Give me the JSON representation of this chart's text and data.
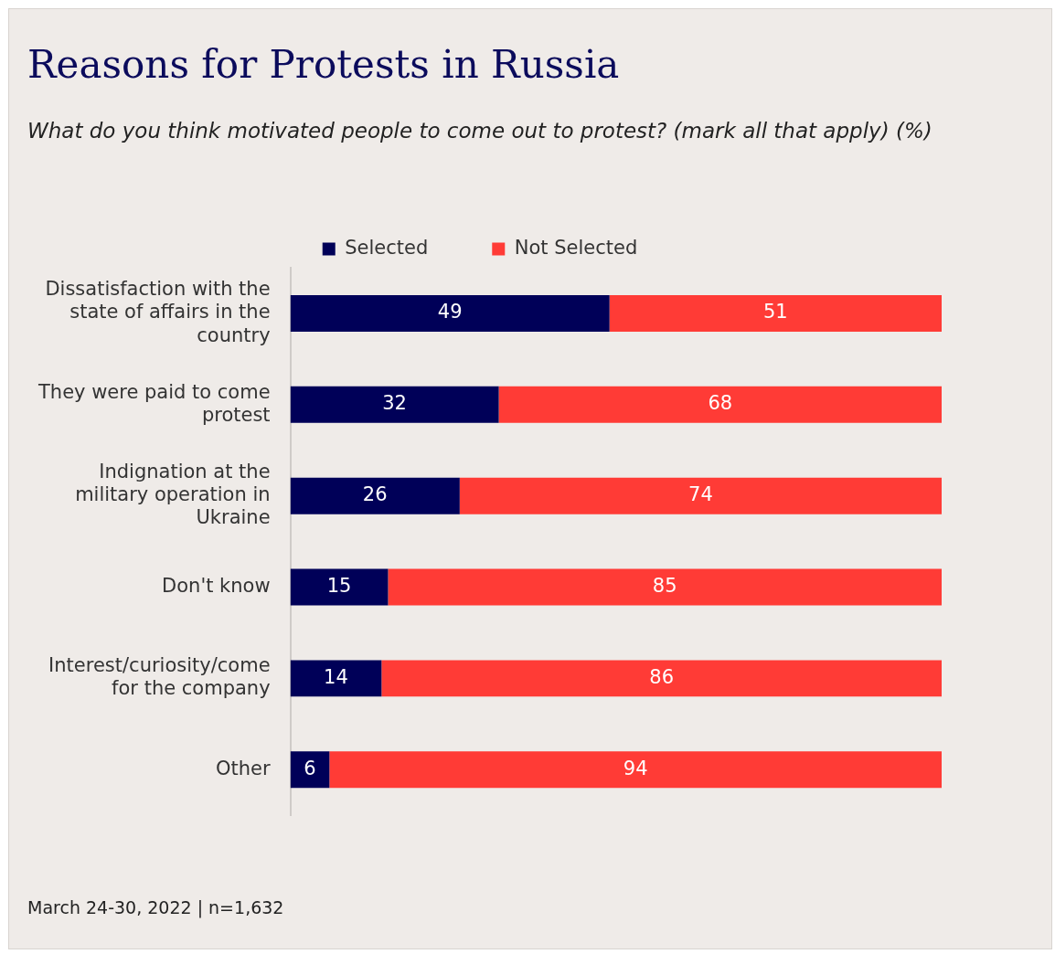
{
  "chart_data": {
    "type": "bar",
    "orientation": "horizontal",
    "stacked": true,
    "title": "Reasons for Protests in Russia",
    "subtitle": "What do you think motivated people to come out to protest? (mark all that apply) (%)",
    "categories": [
      "Dissatisfaction with the state of affairs in the country",
      "They were paid to come protest",
      "Indignation at the military operation in Ukraine",
      "Don't know",
      "Interest/curiosity/come for the company",
      "Other"
    ],
    "series": [
      {
        "name": "Selected",
        "color": "#000058",
        "values": [
          49,
          32,
          26,
          15,
          14,
          6
        ]
      },
      {
        "name": "Not Selected",
        "color": "#ff3b36",
        "values": [
          51,
          68,
          74,
          85,
          86,
          94
        ]
      }
    ],
    "data_labels": true,
    "legend": "top",
    "tick_labels": "y",
    "annotations": [
      "March 24-30, 2022  | n=1,632"
    ]
  }
}
